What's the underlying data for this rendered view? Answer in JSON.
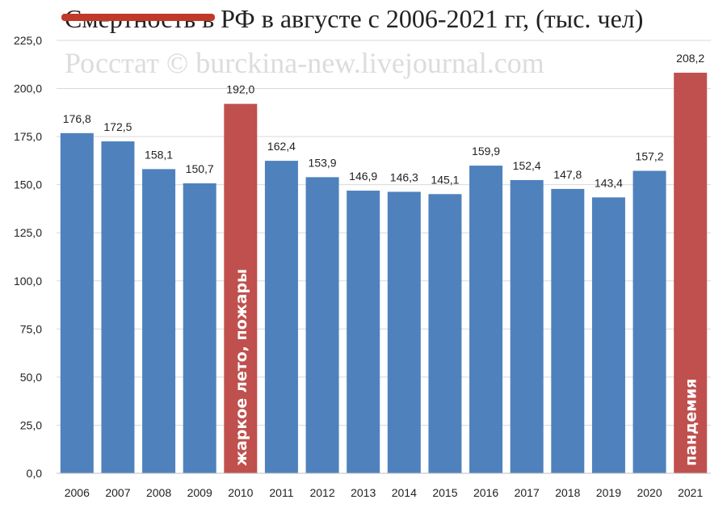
{
  "chart_data": {
    "type": "bar",
    "title": "Смертность в РФ в августе с 2006-2021 гг, (тыс. чел)",
    "watermark": "Росстат © burckina-new.livejournal.com",
    "categories": [
      "2006",
      "2007",
      "2008",
      "2009",
      "2010",
      "2011",
      "2012",
      "2013",
      "2014",
      "2015",
      "2016",
      "2017",
      "2018",
      "2019",
      "2020",
      "2021"
    ],
    "values": [
      176.8,
      172.5,
      158.1,
      150.7,
      192.0,
      162.4,
      153.9,
      146.9,
      146.3,
      145.1,
      159.9,
      152.4,
      147.8,
      143.4,
      157.2,
      208.2
    ],
    "value_labels": [
      "176,8",
      "172,5",
      "158,1",
      "150,7",
      "192,0",
      "162,4",
      "153,9",
      "146,9",
      "146,3",
      "145,1",
      "159,9",
      "152,4",
      "147,8",
      "143,4",
      "157,2",
      "208,2"
    ],
    "highlighted": [
      "2010",
      "2021"
    ],
    "ylim": [
      0,
      225
    ],
    "yticks": [
      0,
      25,
      50,
      75,
      100,
      125,
      150,
      175,
      200,
      225
    ],
    "ytick_labels": [
      "0,0",
      "25,0",
      "50,0",
      "75,0",
      "100,0",
      "125,0",
      "150,0",
      "175,0",
      "200,0",
      "225,0"
    ],
    "grid": true,
    "legend": "none",
    "colors": {
      "normal": "#4f81bd",
      "highlight": "#c0504d",
      "title_strike": "#c0392b"
    },
    "annotations": [
      {
        "category": "2010",
        "text": "жаркое лето, пожары"
      },
      {
        "category": "2021",
        "text": "пандемия"
      }
    ]
  }
}
